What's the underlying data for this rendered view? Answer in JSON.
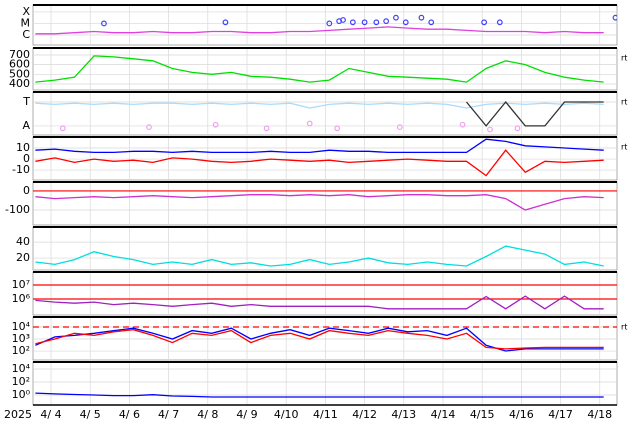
{
  "time_axis": {
    "year": "2025",
    "xlim": [
      3.54,
      18.44
    ],
    "xticks": [
      {
        "value": 4,
        "label": "4/ 4"
      },
      {
        "value": 5,
        "label": "4/ 5"
      },
      {
        "value": 6,
        "label": "4/ 6"
      },
      {
        "value": 7,
        "label": "4/ 7"
      },
      {
        "value": 8,
        "label": "4/ 8"
      },
      {
        "value": 9,
        "label": "4/ 9"
      },
      {
        "value": 10,
        "label": "4/10"
      },
      {
        "value": 11,
        "label": "4/11"
      },
      {
        "value": 12,
        "label": "4/12"
      },
      {
        "value": 13,
        "label": "4/13"
      },
      {
        "value": 14,
        "label": "4/14"
      },
      {
        "value": 15,
        "label": "4/15"
      },
      {
        "value": 16,
        "label": "4/16"
      },
      {
        "value": 17,
        "label": "4/17"
      },
      {
        "value": 18,
        "label": "4/18"
      }
    ]
  },
  "chart_data": [
    {
      "type": "line",
      "ylim": [
        0.13,
        3.6
      ],
      "yticks": [
        {
          "value": 3,
          "label": "X"
        },
        {
          "value": 2,
          "label": "M"
        },
        {
          "value": 1,
          "label": "C"
        }
      ],
      "x": [
        3.6,
        4.1,
        4.6,
        5.1,
        5.6,
        6.1,
        6.6,
        7.1,
        7.6,
        8.1,
        8.6,
        9.1,
        9.6,
        10.1,
        10.6,
        11.1,
        11.6,
        12.1,
        12.6,
        13.1,
        13.6,
        14.1,
        14.6,
        15.1,
        15.6,
        16.1,
        16.6,
        17.1,
        17.6,
        18.1
      ],
      "series": [
        {
          "color": "#e040e0",
          "values": [
            1.1,
            1.1,
            1.2,
            1.3,
            1.2,
            1.2,
            1.3,
            1.2,
            1.2,
            1.3,
            1.3,
            1.2,
            1.2,
            1.3,
            1.3,
            1.4,
            1.5,
            1.6,
            1.7,
            1.6,
            1.5,
            1.5,
            1.4,
            1.3,
            1.3,
            1.3,
            1.2,
            1.3,
            1.2,
            1.2
          ]
        },
        {
          "color": "#4040ff",
          "marker": "circle",
          "x": [
            5.35,
            8.45,
            11.1,
            11.35,
            11.45,
            11.7,
            12.0,
            12.3,
            12.55,
            12.8,
            13.05,
            13.45,
            13.7,
            15.05,
            15.45,
            18.4
          ],
          "values": [
            2,
            2.1,
            2,
            2.2,
            2.3,
            2.1,
            2.1,
            2.1,
            2.2,
            2.5,
            2.1,
            2.5,
            2.1,
            2.1,
            2.1,
            2.5
          ]
        }
      ]
    },
    {
      "type": "line",
      "ylim": [
        338,
        772
      ],
      "yticks": [
        400,
        500,
        600,
        700
      ],
      "side_label": "rt",
      "x": [
        3.6,
        4.1,
        4.6,
        5.1,
        5.6,
        6.1,
        6.6,
        7.1,
        7.6,
        8.1,
        8.6,
        9.1,
        9.6,
        10.1,
        10.6,
        11.1,
        11.6,
        12.1,
        12.6,
        13.1,
        13.6,
        14.1,
        14.6,
        15.1,
        15.6,
        16.1,
        16.6,
        17.1,
        17.6,
        18.1
      ],
      "series": [
        {
          "color": "#00e000",
          "values": [
            420,
            440,
            470,
            690,
            680,
            660,
            640,
            560,
            520,
            500,
            520,
            480,
            470,
            450,
            420,
            440,
            560,
            520,
            480,
            470,
            460,
            450,
            420,
            560,
            640,
            600,
            520,
            470,
            440,
            420
          ]
        }
      ]
    },
    {
      "type": "line",
      "ylim": [
        -0.38,
        1.42
      ],
      "yticks": [
        {
          "value": 1,
          "label": "T"
        },
        {
          "value": 0,
          "label": "A"
        }
      ],
      "side_label": "rt",
      "x": [
        3.6,
        4.1,
        4.6,
        5.1,
        5.6,
        6.1,
        6.6,
        7.1,
        7.6,
        8.1,
        8.6,
        9.1,
        9.6,
        10.1,
        10.6,
        11.1,
        11.6,
        12.1,
        12.6,
        13.1,
        13.6,
        14.1,
        14.6,
        15.1,
        15.6,
        16.1,
        16.6,
        17.1,
        17.6,
        18.1
      ],
      "series": [
        {
          "color": "#a8dcff",
          "values": [
            0.95,
            0.9,
            0.95,
            0.9,
            0.95,
            0.9,
            0.95,
            0.95,
            0.9,
            0.95,
            0.9,
            0.95,
            0.9,
            0.95,
            0.75,
            0.9,
            0.95,
            0.9,
            0.95,
            0.9,
            0.95,
            0.9,
            0.75,
            0.9,
            0.95,
            0.9,
            0.95,
            0.9,
            0.95,
            0.9
          ]
        },
        {
          "color": "#f0a0f0",
          "marker": "circle",
          "x": [
            4.3,
            6.5,
            8.2,
            9.5,
            10.6,
            11.3,
            12.9,
            14.5,
            15.2,
            15.9
          ],
          "values": [
            -0.1,
            -0.05,
            0.05,
            -0.1,
            0.1,
            -0.1,
            -0.05,
            0.05,
            -0.15,
            -0.1
          ]
        },
        {
          "color": "#303030",
          "values": [
            null,
            null,
            null,
            null,
            null,
            null,
            null,
            null,
            null,
            null,
            null,
            null,
            null,
            null,
            null,
            null,
            null,
            null,
            null,
            null,
            null,
            null,
            1,
            0,
            1,
            0,
            0,
            1,
            1,
            1
          ]
        }
      ]
    },
    {
      "type": "line",
      "ylim": [
        -19,
        20
      ],
      "yticks": [
        -10,
        0,
        10
      ],
      "side_label": "rt",
      "x": [
        3.6,
        4.1,
        4.6,
        5.1,
        5.6,
        6.1,
        6.6,
        7.1,
        7.6,
        8.1,
        8.6,
        9.1,
        9.6,
        10.1,
        10.6,
        11.1,
        11.6,
        12.1,
        12.6,
        13.1,
        13.6,
        14.1,
        14.6,
        15.1,
        15.6,
        16.1,
        16.6,
        17.1,
        17.6,
        18.1
      ],
      "series": [
        {
          "color": "#0000ff",
          "values": [
            8,
            9,
            7,
            6,
            6,
            7,
            7,
            6,
            7,
            6,
            6,
            6,
            7,
            6,
            6,
            8,
            7,
            7,
            6,
            6,
            6,
            6,
            6,
            18,
            16,
            12,
            11,
            10,
            9,
            8
          ]
        },
        {
          "color": "#ff0000",
          "values": [
            -2,
            1,
            -3,
            0,
            -2,
            -1,
            -3,
            1,
            0,
            -2,
            -3,
            -2,
            0,
            -1,
            -2,
            -1,
            -3,
            -2,
            -1,
            0,
            -1,
            -2,
            -2,
            -15,
            8,
            -12,
            -2,
            -3,
            -2,
            -1
          ]
        }
      ]
    },
    {
      "type": "line",
      "ylim": [
        -179,
        47
      ],
      "yticks": [
        -100,
        0
      ],
      "reference_lines": [
        {
          "value": 0,
          "color": "#ff0000"
        }
      ],
      "x": [
        3.6,
        4.1,
        4.6,
        5.1,
        5.6,
        6.1,
        6.6,
        7.1,
        7.6,
        8.1,
        8.6,
        9.1,
        9.6,
        10.1,
        10.6,
        11.1,
        11.6,
        12.1,
        12.6,
        13.1,
        13.6,
        14.1,
        14.6,
        15.1,
        15.6,
        16.1,
        16.6,
        17.1,
        17.6,
        18.1
      ],
      "series": [
        {
          "color": "#d030d0",
          "values": [
            -30,
            -40,
            -35,
            -30,
            -35,
            -30,
            -25,
            -30,
            -35,
            -30,
            -25,
            -20,
            -20,
            -25,
            -20,
            -25,
            -20,
            -30,
            -25,
            -20,
            -20,
            -25,
            -25,
            -20,
            -40,
            -100,
            -70,
            -40,
            -30,
            -35
          ]
        }
      ]
    },
    {
      "type": "line",
      "ylim": [
        5,
        59
      ],
      "yticks": [
        20,
        40
      ],
      "x": [
        3.6,
        4.1,
        4.6,
        5.1,
        5.6,
        6.1,
        6.6,
        7.1,
        7.6,
        8.1,
        8.6,
        9.1,
        9.6,
        10.1,
        10.6,
        11.1,
        11.6,
        12.1,
        12.6,
        13.1,
        13.6,
        14.1,
        14.6,
        15.1,
        15.6,
        16.1,
        16.6,
        17.1,
        17.6,
        18.1
      ],
      "series": [
        {
          "color": "#00dede",
          "values": [
            15,
            12,
            18,
            28,
            22,
            18,
            12,
            15,
            12,
            18,
            12,
            14,
            10,
            12,
            18,
            12,
            15,
            20,
            14,
            12,
            15,
            12,
            10,
            22,
            35,
            30,
            25,
            12,
            15,
            10
          ]
        }
      ]
    },
    {
      "type": "line",
      "log": true,
      "ylim": [
        72000,
        85000000
      ],
      "yticks": [
        {
          "value": 1000000,
          "label": "10⁶"
        },
        {
          "value": 10000000,
          "label": "10⁷"
        }
      ],
      "reference_lines": [
        {
          "value": 10000000,
          "color": "#ff0000"
        },
        {
          "value": 1000000,
          "color": "#ff0000"
        }
      ],
      "x": [
        3.6,
        4.1,
        4.6,
        5.1,
        5.6,
        6.1,
        6.6,
        7.1,
        7.6,
        8.1,
        8.6,
        9.1,
        9.6,
        10.1,
        10.6,
        11.1,
        11.6,
        12.1,
        12.6,
        13.1,
        13.6,
        14.1,
        14.6,
        15.1,
        15.6,
        16.1,
        16.6,
        17.1,
        17.6,
        18.1
      ],
      "series": [
        {
          "color": "#a020c0",
          "values": [
            800000,
            600000,
            500000,
            600000,
            400000,
            500000,
            400000,
            300000,
            400000,
            500000,
            300000,
            400000,
            300000,
            300000,
            300000,
            300000,
            300000,
            300000,
            200000,
            200000,
            200000,
            200000,
            200000,
            1500000,
            200000,
            1600000,
            200000,
            1600000,
            200000,
            200000
          ]
        }
      ]
    },
    {
      "type": "line",
      "log": true,
      "ylim": [
        18,
        68000
      ],
      "yticks": [
        {
          "value": 100,
          "label": "10²"
        },
        {
          "value": 1000,
          "label": "10³"
        },
        {
          "value": 10000,
          "label": "10⁴"
        }
      ],
      "side_label": "rt",
      "reference_lines": [
        {
          "value": 10000,
          "color": "#ff0000",
          "dashed": true
        }
      ],
      "x": [
        3.6,
        4.1,
        4.6,
        5.1,
        5.6,
        6.1,
        6.6,
        7.1,
        7.6,
        8.1,
        8.6,
        9.1,
        9.6,
        10.1,
        10.6,
        11.1,
        11.6,
        12.1,
        12.6,
        13.1,
        13.6,
        14.1,
        14.6,
        15.1,
        15.6,
        16.1,
        16.6,
        17.1,
        17.6,
        18.1
      ],
      "series": [
        {
          "color": "#0000ff",
          "values": [
            300,
            1500,
            2000,
            3000,
            5000,
            8000,
            3000,
            1000,
            5000,
            3000,
            8000,
            1000,
            3000,
            6000,
            2000,
            8000,
            5000,
            3000,
            8000,
            4000,
            5000,
            2000,
            8000,
            300,
            100,
            150,
            150,
            150,
            150,
            150
          ]
        },
        {
          "color": "#ff0000",
          "values": [
            400,
            1000,
            3000,
            2000,
            4000,
            6000,
            2000,
            500,
            3000,
            2000,
            5000,
            500,
            2000,
            3000,
            1000,
            5000,
            3000,
            2000,
            5000,
            3000,
            2000,
            1000,
            3000,
            200,
            150,
            180,
            200,
            200,
            200,
            200
          ]
        }
      ]
    },
    {
      "type": "line",
      "log": true,
      "ylim": [
        0.029,
        120000
      ],
      "yticks": [
        {
          "value": 1,
          "label": "10⁰"
        },
        {
          "value": 100,
          "label": "10²"
        },
        {
          "value": 10000,
          "label": "10⁴"
        }
      ],
      "x": [
        3.6,
        4.1,
        4.6,
        5.1,
        5.6,
        6.1,
        6.6,
        7.1,
        7.6,
        8.1,
        8.6,
        9.1,
        9.6,
        10.1,
        10.6,
        11.1,
        11.6,
        12.1,
        12.6,
        13.1,
        13.6,
        14.1,
        14.6,
        15.1,
        15.6,
        16.1,
        16.6,
        17.1,
        17.6,
        18.1
      ],
      "series": [
        {
          "color": "#0000ff",
          "values": [
            2,
            1.5,
            1.2,
            1,
            0.8,
            0.8,
            1.1,
            0.7,
            0.6,
            0.5,
            0.5,
            0.5,
            0.5,
            0.5,
            0.5,
            0.5,
            0.5,
            0.5,
            0.5,
            0.5,
            0.5,
            0.5,
            0.5,
            0.5,
            0.5,
            0.5,
            0.5,
            0.5,
            0.5,
            0.5
          ]
        }
      ]
    }
  ]
}
